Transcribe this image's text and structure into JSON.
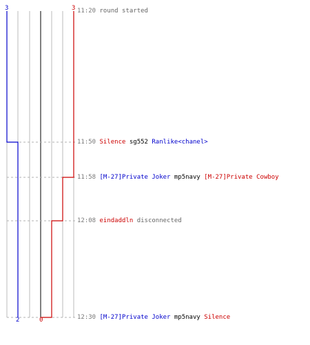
{
  "colors": {
    "blue": "#0000cc",
    "red": "#cc0000",
    "grid": "#bbbbbb",
    "grid_center": "#555555",
    "dash": "#b0b0b0",
    "time": "#777777",
    "text": "#000000",
    "gray_text": "#666666"
  },
  "score": {
    "blue_start": "3",
    "red_start": "3",
    "blue_end": "2",
    "red_end": "0"
  },
  "events": [
    {
      "time": "11:20",
      "parts": [
        {
          "text": " round started",
          "color": "gray"
        }
      ]
    },
    {
      "time": "11:50",
      "parts": [
        {
          "text": "Silence",
          "color": "red"
        },
        {
          "text": " sg552 ",
          "color": "black"
        },
        {
          "text": "Ranlike<chanel>",
          "color": "blue"
        }
      ]
    },
    {
      "time": "11:58",
      "parts": [
        {
          "text": "[M-27]Private Joker",
          "color": "blue"
        },
        {
          "text": " mp5navy ",
          "color": "black"
        },
        {
          "text": "[M-27]Private Cowboy",
          "color": "red"
        }
      ]
    },
    {
      "time": "12:08",
      "parts": [
        {
          "text": "eindaddln",
          "color": "red"
        },
        {
          "text": " disconnected",
          "color": "gray"
        }
      ]
    },
    {
      "time": "12:30",
      "parts": [
        {
          "text": "[M-27]Private Joker",
          "color": "blue"
        },
        {
          "text": " mp5navy ",
          "color": "black"
        },
        {
          "text": "Silence",
          "color": "red"
        }
      ]
    }
  ],
  "graph": {
    "blue_alive": [
      3,
      2,
      2,
      2,
      2
    ],
    "red_alive": [
      3,
      3,
      2,
      1,
      0
    ]
  }
}
